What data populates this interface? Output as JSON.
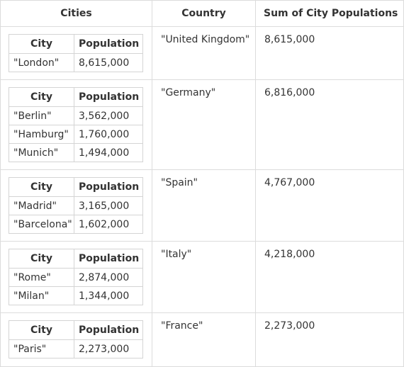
{
  "headers": {
    "cities": "Cities",
    "country": "Country",
    "sum": "Sum of City Populations"
  },
  "inner_headers": {
    "city": "City",
    "population": "Population"
  },
  "rows": [
    {
      "country": "\"United Kingdom\"",
      "sum": "8,615,000",
      "cities": [
        {
          "city": "\"London\"",
          "population": "8,615,000"
        }
      ]
    },
    {
      "country": "\"Germany\"",
      "sum": "6,816,000",
      "cities": [
        {
          "city": "\"Berlin\"",
          "population": "3,562,000"
        },
        {
          "city": "\"Hamburg\"",
          "population": "1,760,000"
        },
        {
          "city": "\"Munich\"",
          "population": "1,494,000"
        }
      ]
    },
    {
      "country": "\"Spain\"",
      "sum": "4,767,000",
      "cities": [
        {
          "city": "\"Madrid\"",
          "population": "3,165,000"
        },
        {
          "city": "\"Barcelona\"",
          "population": "1,602,000"
        }
      ]
    },
    {
      "country": "\"Italy\"",
      "sum": "4,218,000",
      "cities": [
        {
          "city": "\"Rome\"",
          "population": "2,874,000"
        },
        {
          "city": "\"Milan\"",
          "population": "1,344,000"
        }
      ]
    },
    {
      "country": "\"France\"",
      "sum": "2,273,000",
      "cities": [
        {
          "city": "\"Paris\"",
          "population": "2,273,000"
        }
      ]
    }
  ]
}
